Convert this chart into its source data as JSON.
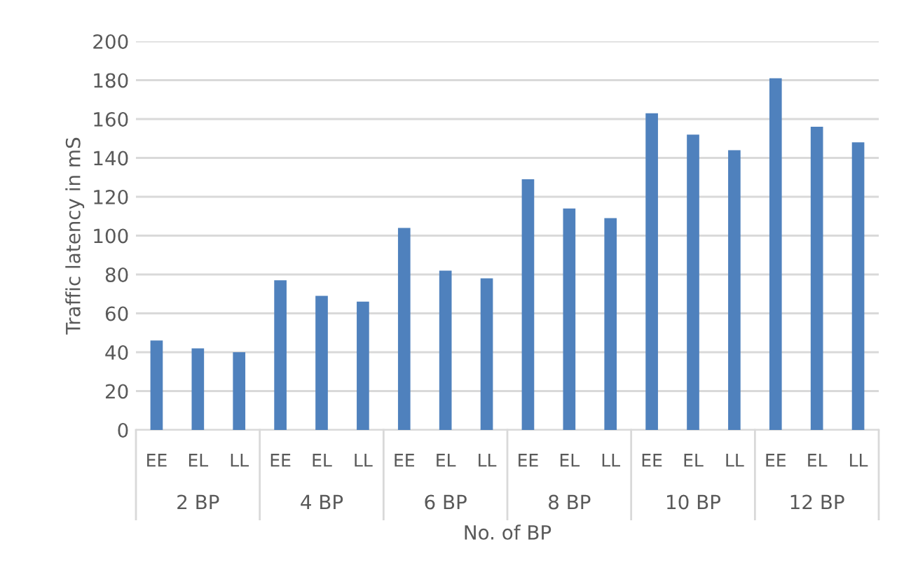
{
  "chart_data": {
    "type": "bar",
    "categories": [
      "EE",
      "EL",
      "LL",
      "EE",
      "EL",
      "LL",
      "EE",
      "EL",
      "LL",
      "EE",
      "EL",
      "LL",
      "EE",
      "EL",
      "LL",
      "EE",
      "EL",
      "LL"
    ],
    "values": [
      46,
      42,
      40,
      77,
      69,
      66,
      104,
      82,
      78,
      129,
      114,
      109,
      163,
      152,
      144,
      181,
      156,
      148
    ],
    "color": "#4f81bd",
    "annotations": [
      "2 BP",
      "4 BP",
      "6 BP",
      "8 BP",
      "10 BP",
      "12 BP"
    ],
    "xlabel": "No. of BP",
    "ylabel": "Traffic latency in mS",
    "ylim": [
      0,
      200
    ],
    "yticks": [
      0,
      20,
      40,
      60,
      80,
      100,
      120,
      140,
      160,
      180,
      200
    ],
    "grid": "y",
    "legend": false
  }
}
